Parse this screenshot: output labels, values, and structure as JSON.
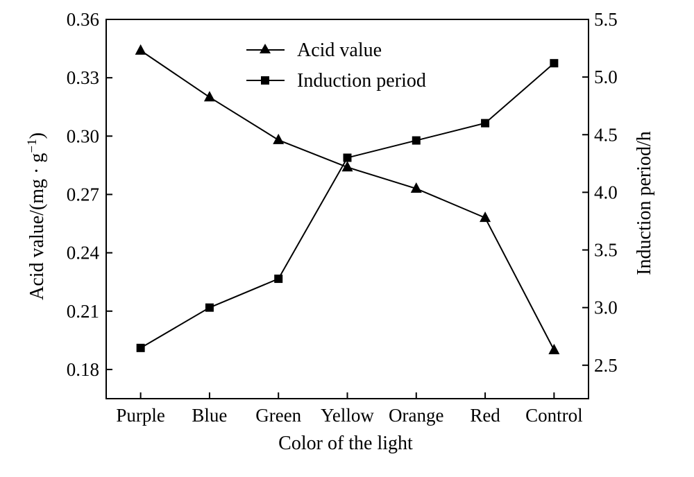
{
  "chart_data": {
    "type": "line",
    "xlabel": "Color of the light",
    "categories": [
      "Purple",
      "Blue",
      "Green",
      "Yellow",
      "Orange",
      "Red",
      "Control"
    ],
    "y_left": {
      "label": "Acid value/(mg · g",
      "label_sup": "−1",
      "label_end": ")",
      "ylim": [
        0.165,
        0.36
      ],
      "ticks": [
        "0.18",
        "0.21",
        "0.24",
        "0.27",
        "0.30",
        "0.33",
        "0.36"
      ]
    },
    "y_right": {
      "label": "Induction period/h",
      "ylim": [
        2.21,
        5.5
      ],
      "ticks": [
        "2.5",
        "3.0",
        "3.5",
        "4.0",
        "4.5",
        "5.0",
        "5.5"
      ]
    },
    "series": [
      {
        "name": "Acid value",
        "axis": "left",
        "marker": "triangle",
        "values": [
          0.344,
          0.32,
          0.298,
          0.284,
          0.273,
          0.258,
          0.19
        ]
      },
      {
        "name": "Induction period",
        "axis": "right",
        "marker": "square",
        "values": [
          2.65,
          3.0,
          3.25,
          4.3,
          4.45,
          4.6,
          5.12
        ]
      }
    ],
    "legend_position": "top-center",
    "grid": false
  }
}
